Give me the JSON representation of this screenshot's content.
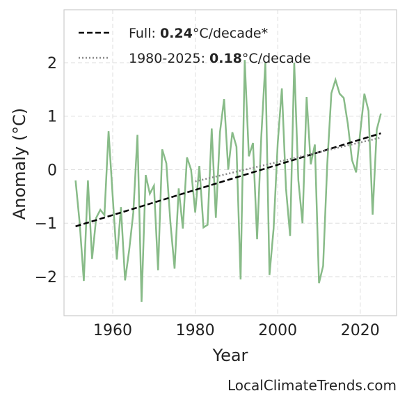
{
  "chart_data": {
    "type": "line",
    "x_label": "Year",
    "y_label": "Anomaly (°C)",
    "source": "LocalClimateTrends.com",
    "xlim": [
      1948.2,
      2028.8
    ],
    "ylim": [
      -2.73,
      2.99
    ],
    "xticks": [
      1960,
      1980,
      2000,
      2020
    ],
    "yticks": [
      {
        "value": -2,
        "label": "−2"
      },
      {
        "value": -1,
        "label": "−1"
      },
      0,
      1,
      2
    ],
    "grid": true,
    "legend": "upper left",
    "x": [
      1951,
      1952,
      1953,
      1954,
      1955,
      1956,
      1957,
      1958,
      1959,
      1960,
      1961,
      1962,
      1963,
      1964,
      1965,
      1966,
      1967,
      1968,
      1969,
      1970,
      1971,
      1972,
      1973,
      1974,
      1975,
      1976,
      1977,
      1978,
      1979,
      1980,
      1981,
      1982,
      1983,
      1984,
      1985,
      1986,
      1987,
      1988,
      1989,
      1990,
      1991,
      1992,
      1993,
      1994,
      1995,
      1996,
      1997,
      1998,
      1999,
      2000,
      2001,
      2002,
      2003,
      2004,
      2005,
      2006,
      2007,
      2008,
      2009,
      2010,
      2011,
      2012,
      2013,
      2014,
      2015,
      2016,
      2017,
      2018,
      2019,
      2020,
      2021,
      2022,
      2023,
      2024,
      2025
    ],
    "series": [
      {
        "color": "#88bb88",
        "values": [
          -0.2,
          -1.0,
          -2.08,
          -0.2,
          -1.67,
          -0.9,
          -0.75,
          -0.85,
          0.72,
          -0.5,
          -1.68,
          -0.7,
          -2.07,
          -1.5,
          -0.8,
          0.65,
          -2.47,
          -0.1,
          -0.45,
          -0.3,
          -1.88,
          0.38,
          0.12,
          -1.0,
          -1.85,
          -0.35,
          -1.1,
          0.23,
          0.0,
          -0.8,
          0.07,
          -1.08,
          -1.03,
          0.77,
          -0.9,
          0.7,
          1.32,
          0.0,
          0.7,
          0.43,
          -2.05,
          2.05,
          0.25,
          0.5,
          -1.3,
          0.6,
          2.0,
          -1.97,
          -1.1,
          0.5,
          1.52,
          -0.35,
          -1.24,
          2.0,
          -0.2,
          -1.0,
          1.36,
          0.1,
          0.47,
          -2.12,
          -1.8,
          0.1,
          1.43,
          1.68,
          1.42,
          1.34,
          0.85,
          0.18,
          -0.05,
          0.7,
          1.42,
          1.1,
          -0.84,
          0.75,
          1.05
        ]
      },
      {
        "name": "Full: 0.24°C/decade*",
        "color": "#000000",
        "dash": "dashed",
        "x": [
          1951,
          2025
        ],
        "values": [
          -1.06,
          0.68
        ]
      },
      {
        "name": "1980-2025: 0.18°C/decade",
        "color": "#888888",
        "dash": "dotted",
        "x": [
          1980,
          2025
        ],
        "values": [
          -0.22,
          0.6
        ]
      }
    ]
  }
}
